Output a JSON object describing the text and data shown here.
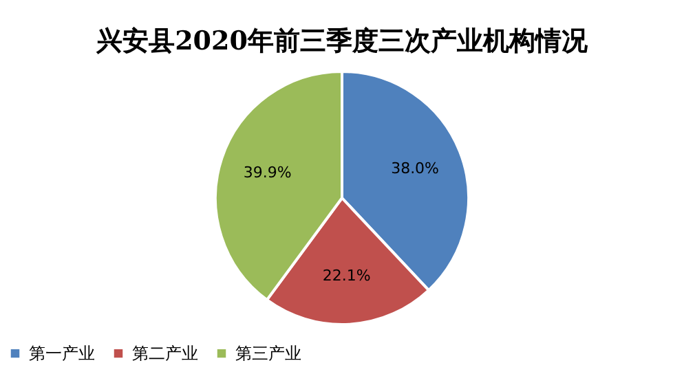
{
  "chart_data": {
    "type": "pie",
    "title": "兴安县2020年前三季度三次产业机构情况",
    "categories": [
      "第一产业",
      "第二产业",
      "第三产业"
    ],
    "values": [
      38.0,
      22.1,
      39.9
    ],
    "colors": [
      "#4f81bd",
      "#c0504d",
      "#9bbb59"
    ],
    "value_labels": [
      "38.0%",
      "22.1%",
      "39.9%"
    ],
    "legend": "bottom"
  }
}
